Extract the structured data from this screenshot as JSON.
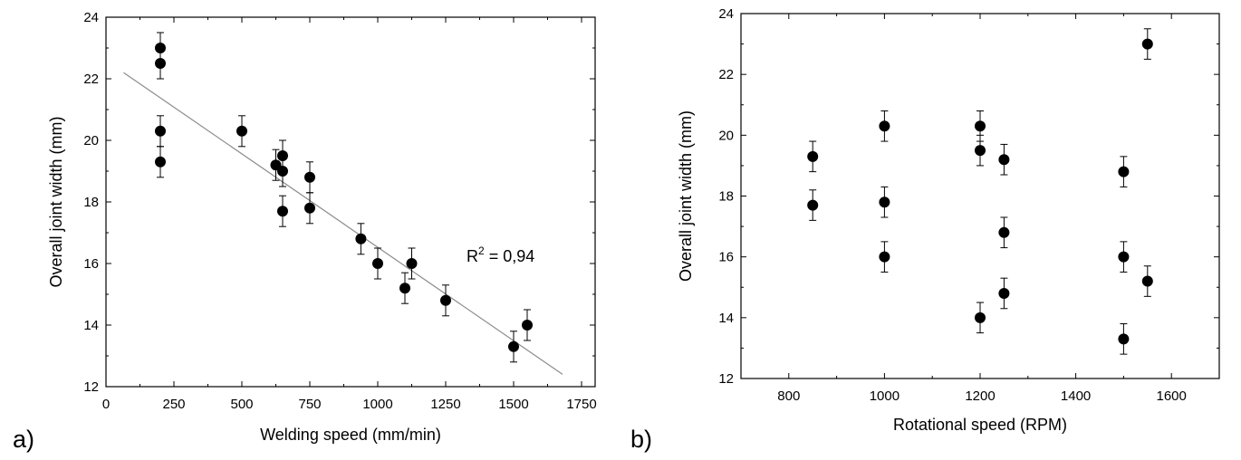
{
  "chart_data": [
    {
      "type": "scatter",
      "panel_label": "a)",
      "title": "",
      "xlabel": "Welding speed (mm/min)",
      "ylabel": "Overall joint width (mm)",
      "xlim": [
        0,
        1800
      ],
      "ylim": [
        12,
        24
      ],
      "x_ticks": [
        0,
        250,
        500,
        750,
        1000,
        1250,
        1500,
        1750
      ],
      "y_ticks": [
        12,
        14,
        16,
        18,
        20,
        22,
        24
      ],
      "grid": false,
      "error_bar": 0.5,
      "x": [
        200,
        200,
        200,
        200,
        500,
        625,
        650,
        650,
        650,
        750,
        750,
        938,
        1000,
        1100,
        1125,
        1250,
        1500,
        1550
      ],
      "y": [
        23.0,
        22.5,
        20.3,
        19.3,
        20.3,
        19.2,
        19.5,
        19.0,
        17.7,
        18.8,
        17.8,
        16.8,
        16.0,
        15.2,
        16.0,
        14.8,
        13.3,
        14.0
      ],
      "fit": {
        "x": [
          65,
          1680
        ],
        "y": [
          22.2,
          12.4
        ]
      },
      "annotation": {
        "text": "R",
        "superscript": "2",
        "suffix": " = 0,94"
      }
    },
    {
      "type": "scatter",
      "panel_label": "b)",
      "title": "",
      "xlabel": "Rotational speed (RPM)",
      "ylabel": "Overall joint width (mm)",
      "xlim": [
        700,
        1700
      ],
      "ylim": [
        12,
        24
      ],
      "x_ticks": [
        800,
        1000,
        1200,
        1400,
        1600
      ],
      "y_ticks": [
        12,
        14,
        16,
        18,
        20,
        22,
        24
      ],
      "grid": false,
      "error_bar": 0.5,
      "x": [
        850,
        850,
        1000,
        1000,
        1000,
        1200,
        1200,
        1200,
        1250,
        1250,
        1250,
        1500,
        1500,
        1500,
        1550,
        1550
      ],
      "y": [
        19.3,
        17.7,
        20.3,
        17.8,
        16.0,
        20.3,
        19.5,
        14.0,
        19.2,
        16.8,
        14.8,
        18.8,
        16.0,
        13.3,
        23.0,
        15.2
      ]
    }
  ]
}
